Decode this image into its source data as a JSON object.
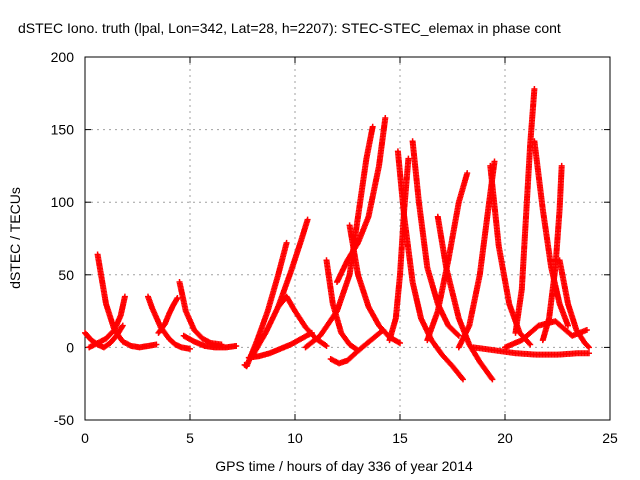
{
  "chart_data": {
    "type": "scatter",
    "title": "dSTEC Iono. truth (lpal, Lon=342, Lat=28, h=2207): STEC-STEC_elemax in phase cont",
    "xlabel": "GPS time / hours of day 336 of year 2014",
    "ylabel": "dSTEC  / TECUs",
    "xlim": [
      0,
      25
    ],
    "ylim": [
      -50,
      200
    ],
    "x_ticks": [
      0,
      5,
      10,
      15,
      20,
      25
    ],
    "y_ticks": [
      -50,
      0,
      50,
      100,
      150,
      200
    ],
    "grid": true,
    "legend": "none",
    "marker": "+",
    "color": "#ff0000",
    "series": [
      {
        "x": [
          0.0,
          0.3,
          0.6,
          0.9,
          1.2,
          1.5,
          1.8
        ],
        "y": [
          10,
          5,
          2,
          0,
          3,
          8,
          15
        ]
      },
      {
        "x": [
          0.6,
          1.0,
          1.4,
          1.8,
          2.2,
          2.6,
          3.0,
          3.4
        ],
        "y": [
          64,
          30,
          12,
          4,
          1,
          0,
          1,
          2
        ]
      },
      {
        "x": [
          0.2,
          0.6,
          1.0,
          1.4,
          1.7,
          1.9
        ],
        "y": [
          0,
          3,
          6,
          12,
          22,
          35
        ]
      },
      {
        "x": [
          3.0,
          3.2,
          3.6,
          4.0,
          4.3,
          4.6,
          5.0
        ],
        "y": [
          35,
          27,
          14,
          6,
          2,
          0,
          -1
        ]
      },
      {
        "x": [
          3.5,
          3.8,
          4.0,
          4.2,
          4.4
        ],
        "y": [
          10,
          16,
          23,
          29,
          34
        ]
      },
      {
        "x": [
          4.5,
          4.8,
          5.2,
          5.6,
          6.0,
          6.5
        ],
        "y": [
          45,
          25,
          12,
          6,
          3,
          2
        ]
      },
      {
        "x": [
          4.7,
          5.2,
          5.7,
          6.2,
          6.7,
          7.2
        ],
        "y": [
          8,
          4,
          1,
          0,
          0,
          1
        ]
      },
      {
        "x": [
          7.6,
          7.7,
          8.2,
          8.7,
          9.2,
          9.6
        ],
        "y": [
          -12,
          -13,
          5,
          25,
          50,
          72
        ]
      },
      {
        "x": [
          8.0,
          8.6,
          9.2,
          9.8,
          10.3,
          10.6
        ],
        "y": [
          -5,
          10,
          28,
          52,
          74,
          88
        ]
      },
      {
        "x": [
          7.8,
          8.3,
          8.8,
          9.3,
          9.8,
          10.3,
          10.8
        ],
        "y": [
          -7,
          -6,
          -4,
          -1,
          2,
          6,
          10
        ]
      },
      {
        "x": [
          9.2,
          9.6,
          10.0,
          10.5,
          11.0,
          11.5
        ],
        "y": [
          28,
          35,
          25,
          14,
          6,
          1
        ]
      },
      {
        "x": [
          10.5,
          11.2,
          12.0,
          12.6,
          13.0,
          13.4,
          13.7
        ],
        "y": [
          0,
          8,
          25,
          50,
          90,
          130,
          152
        ]
      },
      {
        "x": [
          11.5,
          11.8,
          12.2,
          12.6,
          13.0
        ],
        "y": [
          60,
          30,
          10,
          2,
          -2
        ]
      },
      {
        "x": [
          11.7,
          12.1,
          12.5,
          12.8,
          13.2,
          13.7,
          14.2
        ],
        "y": [
          -8,
          -11,
          -9,
          -5,
          0,
          6,
          12
        ]
      },
      {
        "x": [
          12.0,
          12.5,
          13.0,
          13.5,
          14.0,
          14.3
        ],
        "y": [
          45,
          60,
          72,
          90,
          125,
          158
        ]
      },
      {
        "x": [
          12.6,
          13.0,
          13.5,
          14.0,
          14.5,
          15.0
        ],
        "y": [
          84,
          50,
          28,
          15,
          7,
          3
        ]
      },
      {
        "x": [
          14.5,
          14.8,
          15.0,
          15.2,
          15.4
        ],
        "y": [
          5,
          20,
          50,
          95,
          130
        ]
      },
      {
        "x": [
          14.9,
          15.2,
          15.6,
          16.0,
          16.5,
          17.0,
          17.5,
          18.0
        ],
        "y": [
          135,
          90,
          45,
          20,
          5,
          -5,
          -13,
          -22
        ]
      },
      {
        "x": [
          15.6,
          15.9,
          16.3,
          16.8,
          17.3,
          17.8
        ],
        "y": [
          142,
          100,
          55,
          30,
          15,
          8
        ]
      },
      {
        "x": [
          16.3,
          16.8,
          17.3,
          17.8,
          18.2
        ],
        "y": [
          5,
          25,
          60,
          100,
          120
        ]
      },
      {
        "x": [
          16.8,
          17.2,
          17.8,
          18.3,
          18.8,
          19.4
        ],
        "y": [
          90,
          55,
          20,
          2,
          -10,
          -22
        ]
      },
      {
        "x": [
          17.8,
          18.3,
          18.8,
          19.2,
          19.5
        ],
        "y": [
          0,
          15,
          50,
          95,
          128
        ]
      },
      {
        "x": [
          19.3,
          19.7,
          20.2,
          20.7,
          21.2
        ],
        "y": [
          125,
          70,
          30,
          10,
          2
        ]
      },
      {
        "x": [
          20.5,
          20.8,
          21.0,
          21.2,
          21.4
        ],
        "y": [
          10,
          40,
          90,
          140,
          178
        ]
      },
      {
        "x": [
          21.4,
          21.8,
          22.2,
          22.6,
          23.0
        ],
        "y": [
          142,
          95,
          55,
          30,
          15
        ]
      },
      {
        "x": [
          21.8,
          22.1,
          22.4,
          22.6,
          22.7
        ],
        "y": [
          5,
          20,
          55,
          95,
          125
        ]
      },
      {
        "x": [
          22.6,
          23.0,
          23.4,
          23.8,
          24.0
        ],
        "y": [
          60,
          30,
          12,
          3,
          0
        ]
      },
      {
        "x": [
          20.0,
          20.8,
          21.6,
          22.4,
          23.2,
          23.9
        ],
        "y": [
          0,
          5,
          15,
          18,
          8,
          12
        ]
      },
      {
        "x": [
          18.5,
          19.5,
          20.5,
          21.5,
          22.5,
          23.5,
          24.0
        ],
        "y": [
          0,
          -2,
          -4,
          -5,
          -5,
          -4,
          -4
        ]
      }
    ]
  }
}
